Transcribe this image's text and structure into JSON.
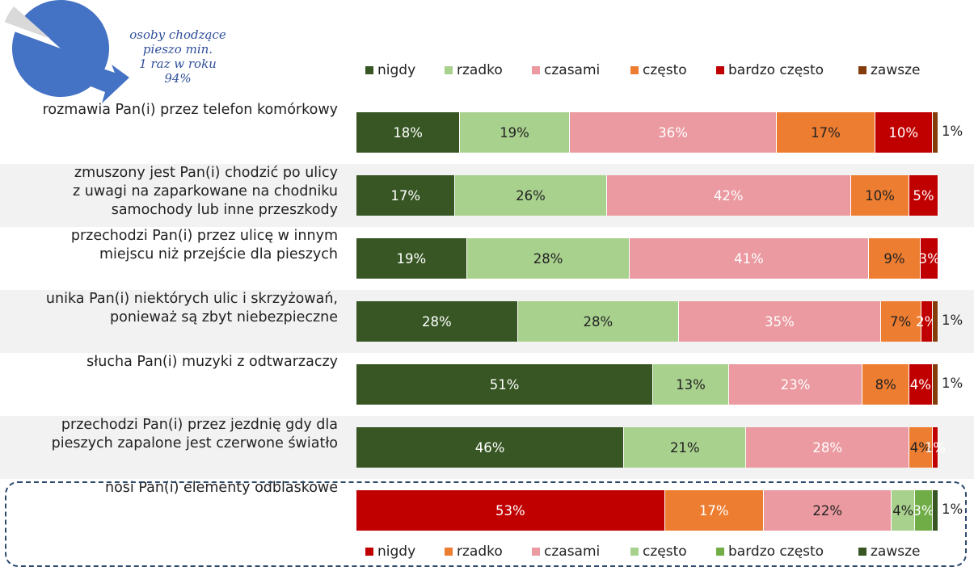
{
  "pie_note": {
    "text": "osoby chodzące\npieszo min.\n1 raz w roku\n94%",
    "share_percent": 94,
    "color": "#4472c4",
    "rest_color": "#d9d9d9"
  },
  "colors": {
    "nigdy": "#375623",
    "rzadko": "#a9d18e",
    "czasami": "#ea9aa0",
    "często": "#ed7d31",
    "bardzo często": "#c00000",
    "zawsze": "#843c0c"
  },
  "colors_reflective": {
    "nigdy": "#c00000",
    "rzadko": "#ed7d31",
    "czasami": "#ea9aa0",
    "często": "#a9d18e",
    "bardzo często": "#70ad47",
    "zawsze": "#375623"
  },
  "chart_data": {
    "type": "bar",
    "orientation": "horizontal",
    "stacked": true,
    "percent": true,
    "categories": [
      "rozmawia Pan(i) przez telefon komórkowy",
      "zmuszony jest Pan(i) chodzić po ulicy\nz uwagi na zaparkowane na chodniku\nsamochody lub inne przeszkody",
      "przechodzi Pan(i) przez ulicę w innym\nmiejscu niż przejście dla pieszych",
      "unika Pan(i) niektórych ulic i skrzyżowań,\nponieważ są zbyt niebezpieczne",
      "słucha Pan(i) muzyki z odtwarzaczy",
      "przechodzi Pan(i) przez jezdnię gdy dla\npieszych zapalone jest czerwone światło",
      "nosi Pan(i) elementy odblaskowe"
    ],
    "series_names": [
      "nigdy",
      "rzadko",
      "czasami",
      "często",
      "bardzo często",
      "zawsze"
    ],
    "values": [
      [
        18,
        19,
        36,
        17,
        10,
        1
      ],
      [
        17,
        26,
        42,
        10,
        5,
        0
      ],
      [
        19,
        28,
        41,
        9,
        3,
        0
      ],
      [
        28,
        28,
        35,
        7,
        2,
        1
      ],
      [
        51,
        13,
        23,
        8,
        4,
        1
      ],
      [
        46,
        21,
        28,
        4,
        1,
        0
      ],
      [
        53,
        17,
        22,
        4,
        3,
        1
      ]
    ],
    "data_labels": [
      [
        "18%",
        "19%",
        "36%",
        "17%",
        "10%",
        "1%"
      ],
      [
        "17%",
        "26%",
        "42%",
        "10%",
        "5%",
        ""
      ],
      [
        "19%",
        "28%",
        "41%",
        "9%",
        "3%",
        ""
      ],
      [
        "28%",
        "28%",
        "35%",
        "7%",
        "2%",
        "1%"
      ],
      [
        "51%",
        "13%",
        "23%",
        "8%",
        "4%",
        "1%"
      ],
      [
        "46%",
        "21%",
        "28%",
        "4%",
        "1%",
        ""
      ],
      [
        "53%",
        "17%",
        "22%",
        "4%",
        "3%",
        "1%"
      ]
    ],
    "highlighted_row": 6,
    "legend_placement": "top",
    "legend_reflective_placement": "bottom",
    "xlim": [
      0,
      100
    ]
  }
}
